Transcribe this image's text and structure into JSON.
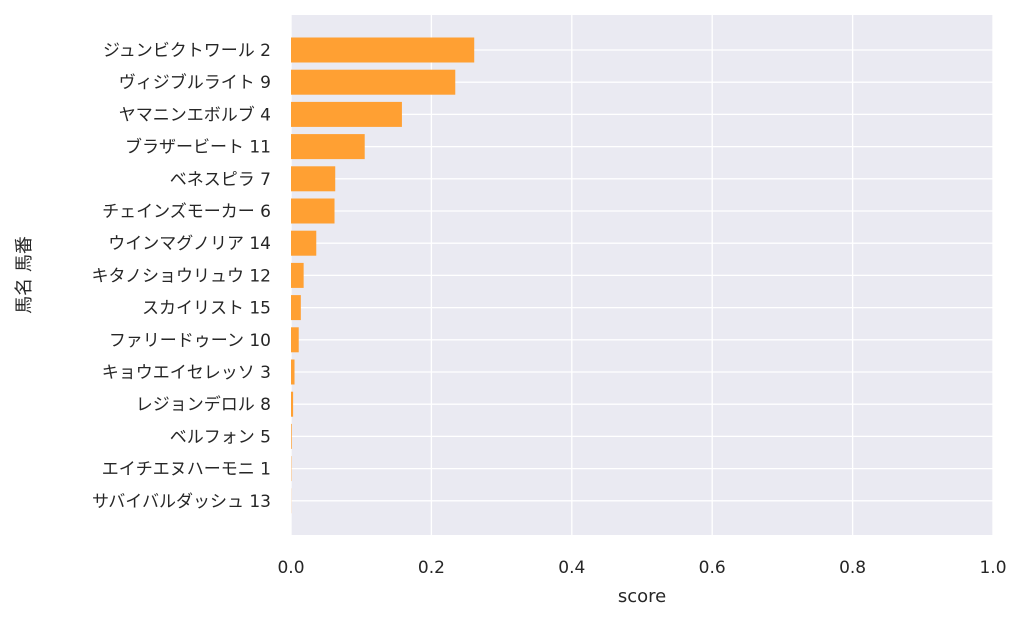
{
  "chart_data": {
    "type": "bar",
    "orientation": "horizontal",
    "xlabel": "score",
    "ylabel": "馬名 馬番",
    "xlim": [
      0,
      1.0
    ],
    "xticks": [
      "0.0",
      "0.2",
      "0.4",
      "0.6",
      "0.8",
      "1.0"
    ],
    "grid": true,
    "colors": {
      "bar": "#ffa033",
      "background": "#eaeaf2",
      "grid": "#ffffff"
    },
    "categories": [
      "ジュンビクトワール 2",
      "ヴィジブルライト 9",
      "ヤマニンエボルブ 4",
      "ブラザービート 11",
      "ベネスピラ 7",
      "チェインズモーカー 6",
      "ウインマグノリア 14",
      "キタノショウリュウ 12",
      "スカイリスト 15",
      "ファリードゥーン 10",
      "キョウエイセレッソ 3",
      "レジョンデロル 8",
      "ベルフォン 5",
      "エイチエヌハーモニ 1",
      "サバイバルダッシュ 13"
    ],
    "values": [
      0.261,
      0.234,
      0.158,
      0.105,
      0.063,
      0.062,
      0.036,
      0.018,
      0.014,
      0.011,
      0.005,
      0.003,
      0.001,
      0.0005,
      0.0002
    ]
  }
}
